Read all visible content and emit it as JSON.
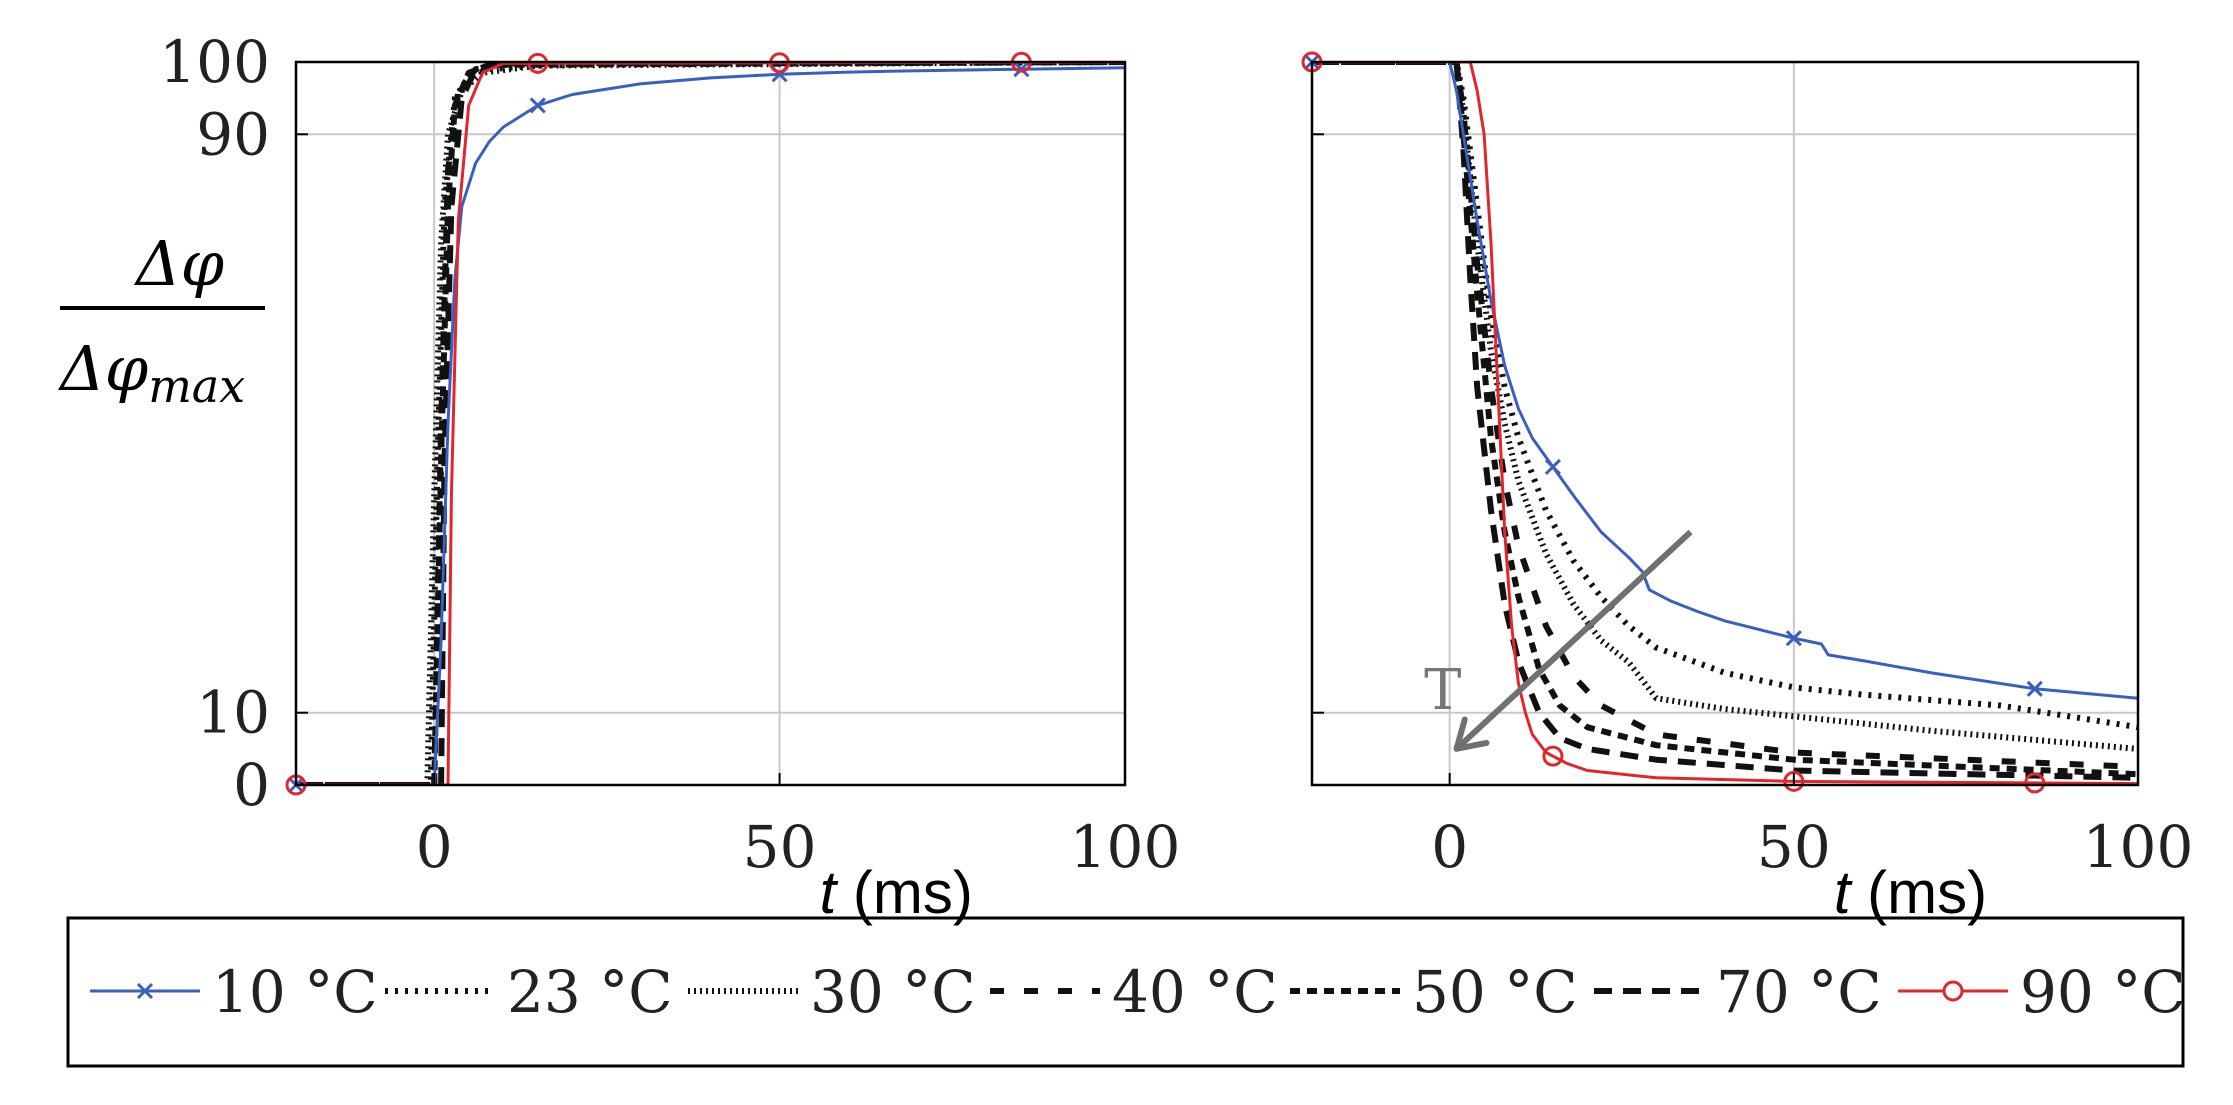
{
  "y_label": {
    "numerator": "Δφ",
    "denominator": "Δφ",
    "denominator_sub": "max"
  },
  "arrow_label": "T",
  "legend": [
    {
      "label": "10 °C",
      "color": "#3a5fbf",
      "style": "solid-x"
    },
    {
      "label": "23 °C",
      "color": "#111111",
      "style": "dotted"
    },
    {
      "label": "30 °C",
      "color": "#111111",
      "style": "dense-dotted"
    },
    {
      "label": "40 °C",
      "color": "#111111",
      "style": "sparse-dashed"
    },
    {
      "label": "50 °C",
      "color": "#111111",
      "style": "short-dashed"
    },
    {
      "label": "70 °C",
      "color": "#111111",
      "style": "dashed"
    },
    {
      "label": "90 °C",
      "color": "#e0262e",
      "style": "solid-o"
    }
  ],
  "chart_data": [
    {
      "type": "line",
      "title": "",
      "xlabel": "t (ms)",
      "ylabel": "Δφ / Δφmax",
      "xlim": [
        -20,
        100
      ],
      "ylim": [
        0,
        100
      ],
      "xticks": [
        0,
        50,
        100
      ],
      "yticks": [
        0,
        10,
        90,
        100
      ],
      "grid": true,
      "series": [
        {
          "name": "10 °C",
          "x": [
            -20,
            0,
            1,
            2,
            3,
            4,
            6,
            8,
            10,
            15,
            20,
            30,
            40,
            50,
            60,
            70,
            85,
            100
          ],
          "y": [
            0,
            0,
            20,
            50,
            70,
            80,
            86,
            89,
            91,
            94,
            95.5,
            97,
            97.8,
            98.3,
            98.6,
            98.8,
            99,
            99.2
          ],
          "markers_x": [
            -20,
            15,
            50,
            85
          ]
        },
        {
          "name": "23 °C",
          "x": [
            -20,
            -0.5,
            0.5,
            1.5,
            3,
            5,
            8,
            15,
            30,
            100
          ],
          "y": [
            0,
            0,
            45,
            80,
            95,
            98,
            99,
            99.5,
            99.8,
            100
          ]
        },
        {
          "name": "30 °C",
          "x": [
            -20,
            -1,
            0,
            1,
            2,
            4,
            7,
            15,
            100
          ],
          "y": [
            0,
            0,
            40,
            75,
            90,
            96,
            98.5,
            99.5,
            100
          ]
        },
        {
          "name": "40 °C",
          "x": [
            -20,
            0,
            1,
            2,
            3.5,
            6,
            10,
            100
          ],
          "y": [
            0,
            0,
            50,
            85,
            96,
            99,
            99.7,
            100
          ]
        },
        {
          "name": "50 °C",
          "x": [
            -20,
            0,
            1,
            2,
            3,
            5,
            8,
            100
          ],
          "y": [
            0,
            0,
            45,
            80,
            94,
            98.5,
            99.6,
            100
          ]
        },
        {
          "name": "70 °C",
          "x": [
            -20,
            1,
            1.5,
            2.5,
            4,
            6,
            10,
            100
          ],
          "y": [
            0,
            0,
            45,
            80,
            95,
            99,
            99.8,
            100
          ]
        },
        {
          "name": "90 °C",
          "x": [
            -20,
            2,
            2.5,
            3.5,
            5,
            7,
            10,
            100
          ],
          "y": [
            0,
            0,
            40,
            78,
            94,
            98.5,
            99.8,
            100
          ],
          "markers_x": [
            -20,
            15,
            50,
            85
          ]
        }
      ]
    },
    {
      "type": "line",
      "title": "",
      "xlabel": "t (ms)",
      "ylabel": "",
      "xlim": [
        -20,
        100
      ],
      "ylim": [
        0,
        100
      ],
      "xticks": [
        0,
        50,
        100
      ],
      "yticks": [
        0,
        10,
        90,
        100
      ],
      "grid": true,
      "annotation": {
        "text": "T",
        "arrow_from": [
          35,
          35
        ],
        "arrow_to": [
          1,
          5
        ]
      },
      "series": [
        {
          "name": "10 °C",
          "x": [
            -20,
            0,
            1,
            2,
            4,
            6,
            8,
            10,
            12,
            15,
            18,
            22,
            26,
            28,
            29,
            32,
            36,
            40,
            45,
            50,
            54,
            55,
            60,
            70,
            85,
            100
          ],
          "y": [
            100,
            100,
            96,
            90,
            78,
            67,
            58,
            52,
            48,
            44,
            40,
            35,
            31.5,
            29.5,
            27,
            25.5,
            24,
            22.7,
            21.5,
            20.3,
            19.5,
            18,
            17.2,
            15.5,
            13.3,
            12
          ],
          "markers_x": [
            -20,
            15,
            50,
            85
          ]
        },
        {
          "name": "23 °C",
          "x": [
            -20,
            1,
            2,
            4,
            6,
            8,
            10,
            14,
            18,
            22,
            26,
            30,
            40,
            50,
            60,
            80,
            100
          ],
          "y": [
            100,
            100,
            95,
            80,
            65,
            55,
            48,
            38,
            31,
            26,
            22,
            19,
            15.5,
            13.5,
            12.5,
            11,
            8
          ]
        },
        {
          "name": "30 °C",
          "x": [
            -20,
            1,
            2,
            4,
            6,
            8,
            10,
            14,
            18,
            22,
            26,
            30,
            40,
            50,
            70,
            100
          ],
          "y": [
            100,
            100,
            93,
            75,
            60,
            50,
            42,
            32,
            25,
            20,
            17,
            12,
            10.5,
            9.5,
            7.5,
            5
          ]
        },
        {
          "name": "40 °C",
          "x": [
            -20,
            1,
            2,
            4,
            6,
            8,
            10,
            14,
            18,
            22,
            30,
            50,
            100
          ],
          "y": [
            100,
            100,
            93,
            72,
            55,
            42,
            33,
            22,
            15,
            11,
            7,
            4.5,
            2.5
          ]
        },
        {
          "name": "50 °C",
          "x": [
            -20,
            1,
            2,
            4,
            6,
            8,
            10,
            13,
            16,
            20,
            30,
            50,
            100
          ],
          "y": [
            100,
            100,
            90,
            68,
            48,
            35,
            26,
            16,
            11,
            8,
            5.5,
            3.5,
            1.5
          ]
        },
        {
          "name": "70 °C",
          "x": [
            -20,
            1,
            2,
            3,
            4,
            6,
            8,
            10,
            13,
            16,
            20,
            30,
            50,
            100
          ],
          "y": [
            100,
            100,
            88,
            70,
            55,
            38,
            25,
            17,
            10,
            6.5,
            5,
            3.5,
            2,
            1
          ]
        },
        {
          "name": "90 °C",
          "x": [
            -20,
            3,
            4,
            5,
            6,
            7,
            8,
            9,
            10,
            11,
            12,
            14,
            17,
            20,
            30,
            50,
            100
          ],
          "y": [
            100,
            100,
            96,
            90,
            75,
            55,
            35,
            22,
            14,
            10,
            7,
            4.5,
            3,
            2,
            1,
            0.5,
            0.2
          ],
          "markers_x": [
            -20,
            15,
            50,
            85
          ]
        }
      ]
    }
  ]
}
